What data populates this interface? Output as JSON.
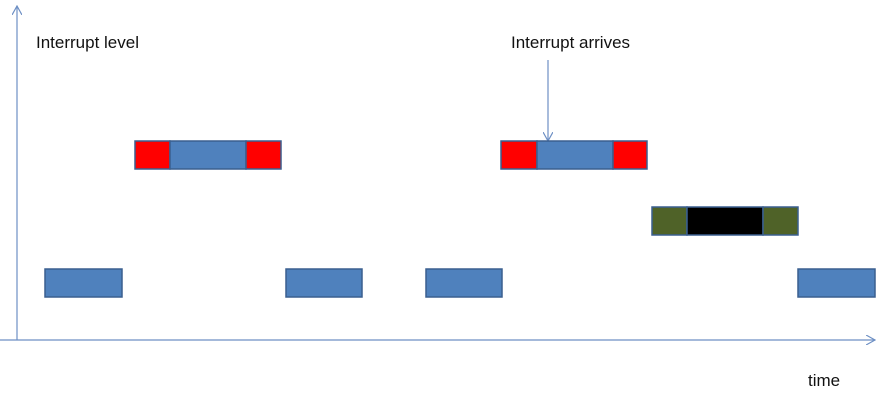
{
  "labels": {
    "y_axis": "Interrupt level",
    "x_axis": "time",
    "annotation": "Interrupt arrives"
  },
  "colors": {
    "axis": "#6d8fc4",
    "task_body": "#4f81bd",
    "task_border": "#3a5f8f",
    "level2_overhead": "#ff0000",
    "level3_overhead": "#4f6228",
    "level3_body": "#000000"
  }
}
